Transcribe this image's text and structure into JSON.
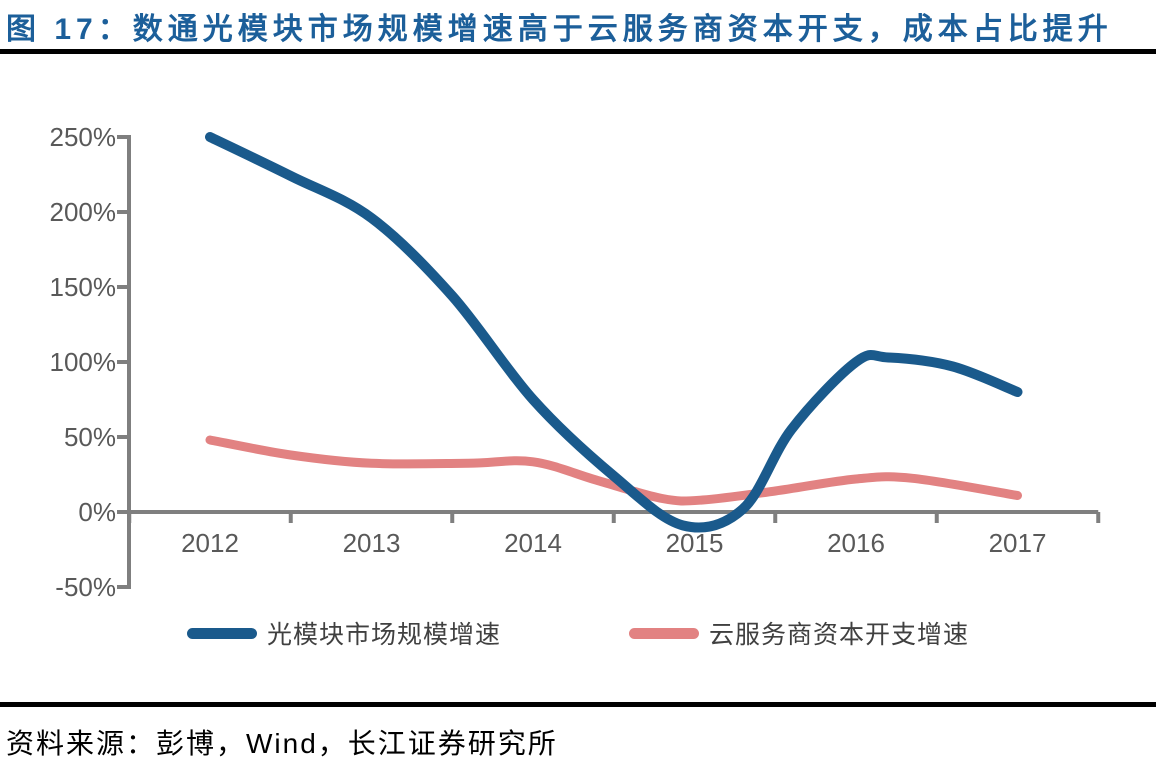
{
  "source": "资料来源：彭博，Wind，长江证券研究所",
  "colors": {
    "title": "#1C5F9A",
    "axis": "#7F7F7F",
    "tick_label": "#595959",
    "legend_label": "#404040",
    "rule": "#000000"
  },
  "chart_data": {
    "type": "line",
    "title": "图 17：数通光模块市场规模增速高于云服务商资本开支，成本占比提升",
    "xlabel": "",
    "ylabel": "",
    "ylim": [
      -50,
      250
    ],
    "y_tick_step": 50,
    "grid": false,
    "legend_position": "bottom",
    "x_tick_labels": [
      "2012",
      "2013",
      "2014",
      "2015",
      "2016",
      "2017"
    ],
    "x_years": [
      2012,
      2013,
      2014,
      2015,
      2016,
      2017
    ],
    "y_tick_labels": [
      "250%",
      "200%",
      "150%",
      "100%",
      "50%",
      "0%",
      "-50%"
    ],
    "y_tick_values": [
      250,
      200,
      150,
      100,
      50,
      0,
      -50
    ],
    "series": [
      {
        "name": "光模块市场规模增速",
        "color": "#1A5A8C",
        "stroke_width": 10,
        "yearly_values_pct": {
          "2012": 250,
          "2013": 196,
          "2014": 75,
          "2015": -9,
          "2016": 100,
          "2017": 80
        },
        "points": [
          [
            2012,
            250
          ],
          [
            2012.5,
            224
          ],
          [
            2013,
            196
          ],
          [
            2013.5,
            144
          ],
          [
            2014,
            75
          ],
          [
            2014.5,
            24
          ],
          [
            2014.93,
            -9
          ],
          [
            2015.3,
            2
          ],
          [
            2015.6,
            55
          ],
          [
            2016,
            100
          ],
          [
            2016.2,
            103
          ],
          [
            2016.6,
            97
          ],
          [
            2017,
            80
          ]
        ]
      },
      {
        "name": "云服务商资本开支增速",
        "color": "#E28282",
        "stroke_width": 9,
        "yearly_values_pct": {
          "2012": 48,
          "2013": 32,
          "2014": 33,
          "2015": 8,
          "2016": 22,
          "2017": 11
        },
        "points": [
          [
            2012,
            48
          ],
          [
            2012.5,
            38
          ],
          [
            2013,
            32.5
          ],
          [
            2013.6,
            32.5
          ],
          [
            2014,
            33.5
          ],
          [
            2014.4,
            21
          ],
          [
            2014.8,
            9
          ],
          [
            2015.05,
            8
          ],
          [
            2015.5,
            14
          ],
          [
            2016,
            22
          ],
          [
            2016.35,
            22.5
          ],
          [
            2017,
            11
          ]
        ]
      }
    ]
  }
}
